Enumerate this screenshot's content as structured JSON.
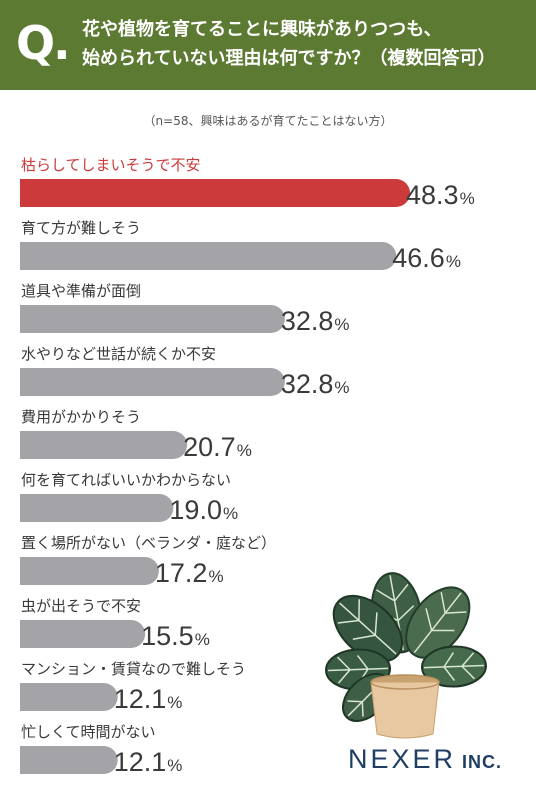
{
  "header": {
    "q_mark": "Q.",
    "question_line1": "花や植物を育てることに興味がありつつも、",
    "question_line2": "始められていない理由は何ですか？（複数回答可）"
  },
  "note": "（n=58、興味はあるが育てたことはない方）",
  "colors": {
    "header_bg": "#5d7a33",
    "highlight": "#cc3a3b",
    "bar": "#a3a3a8",
    "text": "#3a3a3a",
    "brand": "#1f3e64"
  },
  "chart_data": {
    "type": "bar",
    "orientation": "horizontal",
    "unit": "%",
    "categories": [
      "枯らしてしまいそうで不安",
      "育て方が難しそう",
      "道具や準備が面倒",
      "水やりなど世話が続くか不安",
      "費用がかかりそう",
      "何を育てればいいかわからない",
      "置く場所がない（ベランダ・庭など）",
      "虫が出そうで不安",
      "マンション・賃貸なので難しそう",
      "忙しくて時間がない"
    ],
    "values": [
      48.3,
      46.6,
      32.8,
      32.8,
      20.7,
      19.0,
      17.2,
      15.5,
      12.1,
      12.1
    ],
    "value_labels": [
      "48.3",
      "46.6",
      "32.8",
      "32.8",
      "20.7",
      "19.0",
      "17.2",
      "15.5",
      "12.1",
      "12.1"
    ],
    "highlight_index": 0,
    "xlim": [
      0,
      48.3
    ]
  },
  "logo": {
    "main": "NEXER",
    "suffix": " INC."
  }
}
